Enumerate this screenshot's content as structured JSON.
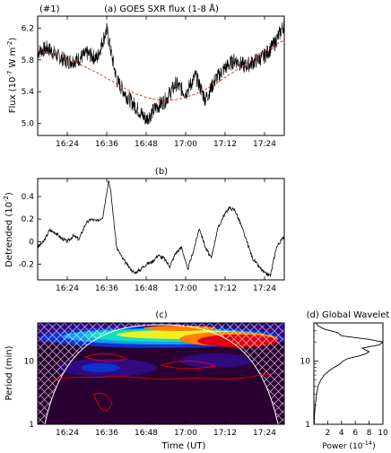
{
  "chart_data": [
    {
      "type": "line",
      "tag": "(#1)",
      "title": "(a) GOES SXR flux (1-8 Å)",
      "ylabel_main": "Flux (10",
      "ylabel_exp1": "-7",
      "ylabel_mid": " W m",
      "ylabel_exp2": "-2",
      "ylabel_end": ")",
      "xlim": [
        16.25,
        17.5
      ],
      "ylim": [
        4.85,
        6.35
      ],
      "xticks": [
        16.4,
        16.6,
        16.8,
        17.0,
        17.2,
        17.4
      ],
      "xtick_labels": [
        "16:24",
        "16:36",
        "16:48",
        "17:00",
        "17:12",
        "17:24"
      ],
      "yticks": [
        5.0,
        5.4,
        5.8,
        6.2
      ],
      "ytick_labels": [
        "5.0",
        "5.4",
        "5.8",
        "6.2"
      ],
      "series": [
        {
          "role": "flux",
          "color": "#000000",
          "x": [
            16.25,
            16.3,
            16.35,
            16.4,
            16.45,
            16.5,
            16.55,
            16.6,
            16.65,
            16.7,
            16.75,
            16.8,
            16.85,
            16.9,
            16.95,
            17.0,
            17.05,
            17.1,
            17.15,
            17.2,
            17.25,
            17.3,
            17.35,
            17.4,
            17.45,
            17.5
          ],
          "y": [
            5.9,
            5.95,
            5.85,
            5.78,
            5.8,
            5.88,
            5.82,
            6.18,
            5.55,
            5.35,
            5.2,
            5.05,
            5.2,
            5.3,
            5.5,
            5.38,
            5.6,
            5.3,
            5.55,
            5.7,
            5.8,
            5.72,
            5.78,
            5.85,
            6.0,
            6.25
          ]
        },
        {
          "role": "trend",
          "color": "#e02020",
          "x": [
            16.25,
            16.3,
            16.35,
            16.4,
            16.45,
            16.5,
            16.55,
            16.6,
            16.65,
            16.7,
            16.75,
            16.8,
            16.85,
            16.9,
            16.95,
            17.0,
            17.05,
            17.1,
            17.15,
            17.2,
            17.25,
            17.3,
            17.35,
            17.4,
            17.45,
            17.5
          ],
          "y": [
            5.92,
            5.88,
            5.84,
            5.8,
            5.76,
            5.7,
            5.64,
            5.57,
            5.5,
            5.43,
            5.37,
            5.33,
            5.3,
            5.29,
            5.3,
            5.33,
            5.37,
            5.43,
            5.5,
            5.58,
            5.66,
            5.74,
            5.82,
            5.9,
            5.98,
            6.05
          ]
        }
      ]
    },
    {
      "type": "line",
      "title": "(b)",
      "ylabel_main": "Detrended (10",
      "ylabel_exp1": "-2",
      "ylabel_end": ")",
      "xlim": [
        16.25,
        17.5
      ],
      "ylim": [
        -0.34,
        0.56
      ],
      "xticks": [
        16.4,
        16.6,
        16.8,
        17.0,
        17.2,
        17.4
      ],
      "xtick_labels": [
        "16:24",
        "16:36",
        "16:48",
        "17:00",
        "17:12",
        "17:24"
      ],
      "yticks": [
        -0.2,
        0.0,
        0.2,
        0.4
      ],
      "ytick_labels": [
        "-0.2",
        "0",
        "0.2",
        "0.4"
      ],
      "series": [
        {
          "color": "#000000",
          "x": [
            16.25,
            16.28,
            16.31,
            16.34,
            16.37,
            16.4,
            16.43,
            16.46,
            16.49,
            16.52,
            16.55,
            16.58,
            16.61,
            16.62,
            16.65,
            16.68,
            16.71,
            16.74,
            16.77,
            16.8,
            16.83,
            16.86,
            16.89,
            16.92,
            16.95,
            16.98,
            17.01,
            17.04,
            17.07,
            17.1,
            17.13,
            17.16,
            17.19,
            17.22,
            17.25,
            17.28,
            17.31,
            17.34,
            17.37,
            17.4,
            17.43,
            17.46,
            17.5
          ],
          "y": [
            -0.05,
            0.0,
            0.1,
            0.08,
            0.03,
            0.0,
            0.05,
            0.02,
            0.15,
            0.2,
            0.18,
            0.22,
            0.55,
            0.45,
            -0.05,
            -0.15,
            -0.22,
            -0.28,
            -0.25,
            -0.2,
            -0.18,
            -0.12,
            -0.15,
            -0.22,
            -0.1,
            -0.05,
            -0.25,
            -0.08,
            0.12,
            -0.05,
            -0.15,
            0.1,
            0.22,
            0.3,
            0.28,
            0.15,
            0.0,
            -0.15,
            -0.22,
            -0.28,
            -0.3,
            -0.05,
            0.05
          ]
        }
      ]
    },
    {
      "type": "heatmap",
      "title": "(c)",
      "xlabel": "Time (UT)",
      "ylabel": "Period (min)",
      "xlim": [
        16.25,
        17.5
      ],
      "ylim": [
        1,
        40
      ],
      "y_scale": "log",
      "xticks": [
        16.4,
        16.6,
        16.8,
        17.0,
        17.2,
        17.4
      ],
      "xtick_labels": [
        "16:24",
        "16:36",
        "16:48",
        "17:00",
        "17:12",
        "17:24"
      ],
      "yticks": [
        1,
        10
      ],
      "ytick_labels": [
        "1",
        "10"
      ],
      "colormap": [
        "#2a0030",
        "#300a80",
        "#1030d0",
        "#10a0f0",
        "#10e0c0",
        "#f0f020",
        "#ff8000",
        "#e00010"
      ],
      "notes": "wavelet power spectrum with cone of influence (white curve), hatched region outside COI, red significance contours"
    },
    {
      "type": "line",
      "title": "(d) Global Wavelet",
      "xlabel_main": "Power (10",
      "xlabel_exp1": "-14",
      "xlabel_end": ")",
      "xlim": [
        0,
        10
      ],
      "ylim": [
        1,
        40
      ],
      "y_scale": "log",
      "xticks": [
        2,
        4,
        6,
        8,
        10
      ],
      "xtick_labels": [
        "2",
        "4",
        "6",
        "8",
        "10"
      ],
      "yticks": [
        1,
        10
      ],
      "ytick_labels": [
        "1",
        "10"
      ],
      "series": [
        {
          "color": "#000000",
          "period": [
            1,
            1.5,
            2,
            2.5,
            3,
            4,
            5,
            6,
            7,
            8,
            9,
            10,
            11,
            12,
            13,
            14,
            16,
            18,
            20,
            22,
            25,
            28,
            32,
            36,
            40
          ],
          "power": [
            0.05,
            0.1,
            0.2,
            0.3,
            0.4,
            0.6,
            1.0,
            1.5,
            2.2,
            3.0,
            3.8,
            4.2,
            5.0,
            6.5,
            7.5,
            8.0,
            7.0,
            9.5,
            10.0,
            8.0,
            4.0,
            3.5,
            1.5,
            0.6,
            0.3
          ]
        }
      ]
    }
  ]
}
